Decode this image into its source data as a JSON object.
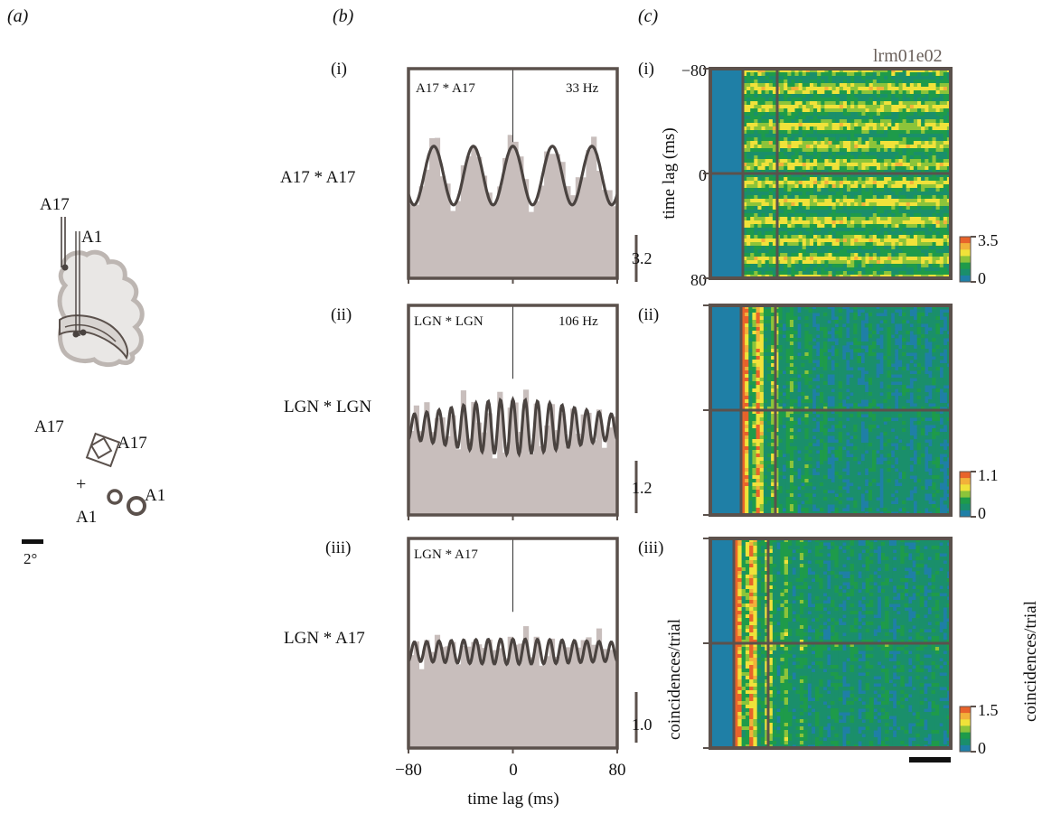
{
  "panel_labels": {
    "a": "(a)",
    "b": "(b)",
    "c": "(c)"
  },
  "row_labels": [
    "(i)",
    "(ii)",
    "(iii)"
  ],
  "panel_a": {
    "electrode_labels": [
      "A17",
      "A1"
    ],
    "rf_labels": [
      "A17",
      "A17",
      "+",
      "A1",
      "A1"
    ],
    "scale_label": "2°"
  },
  "chart_data": [
    {
      "type": "bar",
      "row": "(i)",
      "pair_label": "A17 * A17",
      "inset_label": "A17 * A17",
      "frequency_label": "33 Hz",
      "scale_value": "3.2",
      "x_range": [
        -80,
        80
      ],
      "fit": {
        "frequency_hz": 33,
        "envelope": "broad",
        "baseline_frac": 0.49,
        "amplitude_frac": 0.14
      },
      "histogram_seed": 11
    },
    {
      "type": "bar",
      "row": "(ii)",
      "pair_label": "LGN * LGN",
      "inset_label": "LGN * LGN",
      "frequency_label": "106 Hz",
      "scale_value": "1.2",
      "x_range": [
        -80,
        80
      ],
      "fit": {
        "frequency_hz": 106,
        "envelope": "gaussian",
        "baseline_frac": 0.42,
        "amplitude_frac": 0.09
      },
      "histogram_seed": 29
    },
    {
      "type": "bar",
      "row": "(iii)",
      "pair_label": "LGN * A17",
      "inset_label": "LGN * A17",
      "frequency_label": "",
      "scale_value": "1.0",
      "x_range": [
        -80,
        80
      ],
      "fit": {
        "frequency_hz": 106,
        "envelope": "weak",
        "baseline_frac": 0.46,
        "amplitude_frac": 0.05
      },
      "histogram_seed": 47
    },
    {
      "type": "heatmap",
      "row": "(i)",
      "colorbar_range": [
        "0",
        "3.5"
      ],
      "stripes": 11,
      "mean_level": 0.62
    },
    {
      "type": "heatmap",
      "row": "(ii)",
      "colorbar_range": [
        "0",
        "1.1"
      ],
      "stripes": 13,
      "mean_level": 0.25
    },
    {
      "type": "heatmap",
      "row": "(iii)",
      "colorbar_range": [
        "0",
        "1.5"
      ],
      "stripes": 13,
      "mean_level": 0.3
    }
  ],
  "axes": {
    "b_xticks": [
      "−80",
      "0",
      "80"
    ],
    "b_xlabel": "time lag (ms)",
    "c_yticks": [
      "−80",
      "0",
      "80"
    ],
    "c_ylabel_top": "time lag (ms)",
    "c_ylabel_bottom": "coincidences/trial",
    "right_label": "coincidences/trial",
    "recording_id": "lrm01e02"
  },
  "colors": {
    "histogram": "#c8bebc",
    "fit_line": "#4a4340",
    "frame": "#5b514c",
    "heat_low": "#1f7fa6",
    "heat_mid": "#1e9b4a",
    "heat_hi": "#f0e23a",
    "heat_max": "#e8632b"
  }
}
